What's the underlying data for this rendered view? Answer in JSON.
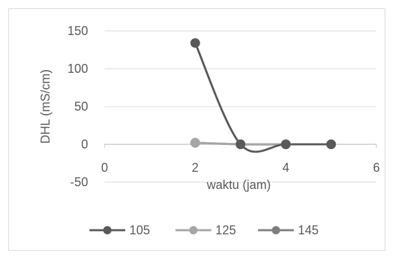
{
  "chart_data": {
    "type": "scatter",
    "title": "",
    "xlabel": "waktu (jam)",
    "ylabel": "DHL (mS/cm)",
    "xlim": [
      0,
      6
    ],
    "ylim": [
      -50,
      150
    ],
    "x_ticks": [
      "0",
      "2",
      "4",
      "6"
    ],
    "y_ticks": [
      "150",
      "100",
      "50",
      "0",
      "-50"
    ],
    "grid": "horizontal",
    "legend_position": "bottom",
    "smoothed_lines": true,
    "series": [
      {
        "name": "105",
        "color": "#595959",
        "points": [
          [
            2,
            134
          ],
          [
            3,
            0
          ],
          [
            4,
            0
          ],
          [
            5,
            0
          ]
        ]
      },
      {
        "name": "125",
        "color": "#a5a5a5",
        "points": [
          [
            2,
            2
          ],
          [
            3,
            0
          ],
          [
            4,
            0
          ],
          [
            5,
            0
          ]
        ]
      },
      {
        "name": "145",
        "color": "#7f7f7f",
        "points": [
          [
            2,
            2
          ],
          [
            3,
            0
          ],
          [
            4,
            0
          ],
          [
            5,
            0
          ]
        ]
      }
    ]
  }
}
